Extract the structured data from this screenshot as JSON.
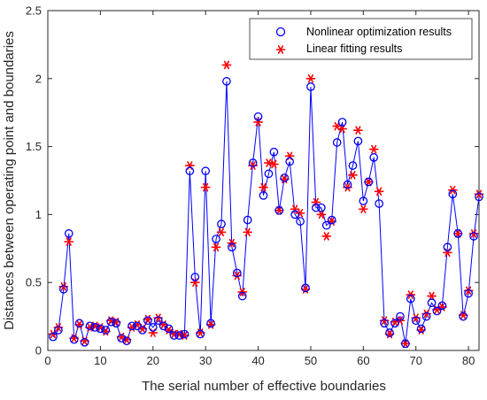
{
  "chart_data": {
    "type": "line",
    "title": "",
    "xlabel": "The serial number of effective boundaries",
    "ylabel": "Distances between operating point and boundaries",
    "xlim": [
      0,
      82
    ],
    "ylim": [
      0,
      2.5
    ],
    "xticks": [
      "0",
      "10",
      "20",
      "30",
      "40",
      "50",
      "60",
      "70",
      "80"
    ],
    "yticks": [
      "0",
      "0.5",
      "1",
      "1.5",
      "2",
      "2.5"
    ],
    "grid": false,
    "legend_position": "top-right",
    "colors": {
      "nonlinear": "#0000ff",
      "linear": "#ff0000",
      "axis": "#262626"
    },
    "series": [
      {
        "name": "Nonlinear optimization results",
        "marker": "circle",
        "line": true,
        "x": [
          1,
          2,
          3,
          4,
          5,
          6,
          7,
          8,
          9,
          10,
          11,
          12,
          13,
          14,
          15,
          16,
          17,
          18,
          19,
          20,
          21,
          22,
          23,
          24,
          25,
          26,
          27,
          28,
          29,
          30,
          31,
          32,
          33,
          34,
          35,
          36,
          37,
          38,
          39,
          40,
          41,
          42,
          43,
          44,
          45,
          46,
          47,
          48,
          49,
          50,
          51,
          52,
          53,
          54,
          55,
          56,
          57,
          58,
          59,
          60,
          61,
          62,
          63,
          64,
          65,
          66,
          67,
          68,
          69,
          70,
          71,
          72,
          73,
          74,
          75,
          76,
          77,
          78,
          79,
          80,
          81,
          82
        ],
        "values": [
          0.1,
          0.15,
          0.45,
          0.86,
          0.08,
          0.2,
          0.06,
          0.18,
          0.17,
          0.16,
          0.15,
          0.21,
          0.2,
          0.09,
          0.07,
          0.18,
          0.18,
          0.15,
          0.22,
          0.17,
          0.22,
          0.18,
          0.16,
          0.11,
          0.11,
          0.12,
          1.32,
          0.54,
          0.12,
          1.32,
          0.2,
          0.82,
          0.93,
          1.98,
          0.76,
          0.57,
          0.4,
          0.96,
          1.38,
          1.72,
          1.14,
          1.3,
          1.46,
          1.03,
          1.27,
          1.39,
          1.0,
          0.95,
          0.46,
          1.94,
          1.05,
          1.05,
          0.92,
          0.96,
          1.53,
          1.68,
          1.22,
          1.36,
          1.54,
          1.1,
          1.24,
          1.42,
          1.08,
          0.2,
          0.13,
          0.2,
          0.25,
          0.05,
          0.38,
          0.22,
          0.16,
          0.25,
          0.35,
          0.29,
          0.33,
          0.76,
          1.15,
          0.86,
          0.25,
          0.42,
          0.84,
          1.13
        ]
      },
      {
        "name": "Linear fitting results",
        "marker": "star",
        "line": false,
        "x": [
          1,
          2,
          3,
          4,
          5,
          6,
          7,
          8,
          9,
          10,
          11,
          12,
          13,
          14,
          15,
          16,
          17,
          18,
          19,
          20,
          21,
          22,
          23,
          24,
          25,
          26,
          27,
          28,
          29,
          30,
          31,
          32,
          33,
          34,
          35,
          36,
          37,
          38,
          39,
          40,
          41,
          42,
          43,
          44,
          45,
          46,
          47,
          48,
          49,
          50,
          51,
          52,
          53,
          54,
          55,
          56,
          57,
          58,
          59,
          60,
          61,
          62,
          63,
          64,
          65,
          66,
          67,
          68,
          69,
          70,
          71,
          72,
          73,
          74,
          75,
          76,
          77,
          78,
          79,
          80,
          81,
          82
        ],
        "values": [
          0.12,
          0.17,
          0.47,
          0.8,
          0.09,
          0.19,
          0.07,
          0.17,
          0.18,
          0.17,
          0.14,
          0.22,
          0.21,
          0.1,
          0.08,
          0.17,
          0.19,
          0.16,
          0.23,
          0.13,
          0.24,
          0.19,
          0.15,
          0.12,
          0.12,
          0.11,
          1.36,
          0.5,
          0.13,
          1.2,
          0.19,
          0.76,
          0.87,
          2.1,
          0.79,
          0.55,
          0.43,
          0.87,
          1.36,
          1.68,
          1.2,
          1.38,
          1.37,
          1.03,
          1.26,
          1.43,
          1.04,
          1.01,
          0.45,
          2.0,
          1.09,
          1.0,
          0.84,
          0.95,
          1.65,
          1.63,
          1.2,
          1.29,
          1.62,
          1.04,
          1.24,
          1.48,
          1.17,
          0.22,
          0.12,
          0.21,
          0.22,
          0.05,
          0.41,
          0.24,
          0.15,
          0.27,
          0.4,
          0.3,
          0.32,
          0.72,
          1.18,
          0.86,
          0.26,
          0.44,
          0.86,
          1.15
        ]
      }
    ]
  }
}
